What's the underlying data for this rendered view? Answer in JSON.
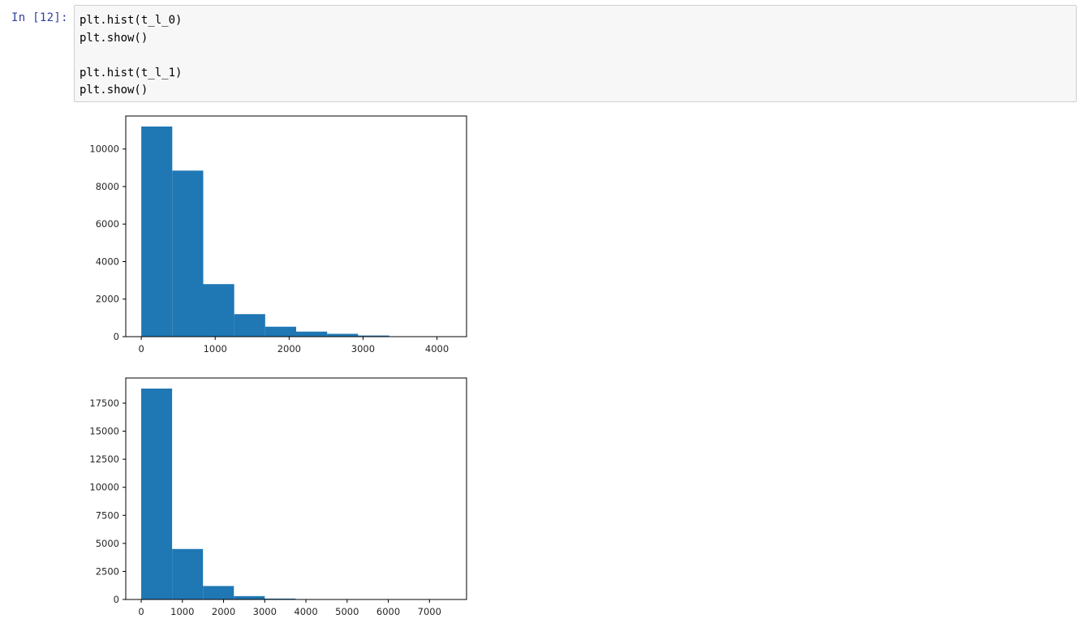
{
  "cell": {
    "prompt": "In [12]:",
    "code_lines": [
      "plt.hist(t_l_0)",
      "plt.show()",
      "",
      "plt.hist(t_l_1)",
      "plt.show()"
    ]
  },
  "colors": {
    "bar": "#1f77b4",
    "prompt": "#303f9f",
    "input_background": "#f7f7f7",
    "input_border": "#cfcfcf"
  },
  "chart_data": [
    {
      "type": "bar",
      "title": "",
      "xlabel": "",
      "ylabel": "",
      "bin_edges": [
        0,
        419,
        838,
        1257,
        1676,
        2095,
        2514,
        2933,
        3352,
        3771,
        4190
      ],
      "values": [
        11200,
        8850,
        2800,
        1200,
        530,
        270,
        150,
        60,
        15,
        5
      ],
      "xlim": [
        -210,
        4400
      ],
      "ylim": [
        0,
        11760
      ],
      "xticks": [
        0,
        1000,
        2000,
        3000,
        4000
      ],
      "xtick_labels": [
        "0",
        "1000",
        "2000",
        "3000",
        "4000"
      ],
      "yticks": [
        0,
        2000,
        4000,
        6000,
        8000,
        10000
      ],
      "ytick_labels": [
        "0",
        "2000",
        "4000",
        "6000",
        "8000",
        "10000"
      ],
      "grid": false
    },
    {
      "type": "bar",
      "title": "",
      "xlabel": "",
      "ylabel": "",
      "bin_edges": [
        0,
        750,
        1500,
        2250,
        3000,
        3750,
        4500,
        5250,
        6000,
        6750,
        7500
      ],
      "values": [
        18800,
        4500,
        1200,
        300,
        80,
        25,
        10,
        5,
        2,
        1
      ],
      "xlim": [
        -375,
        7900
      ],
      "ylim": [
        0,
        19740
      ],
      "xticks": [
        0,
        1000,
        2000,
        3000,
        4000,
        5000,
        6000,
        7000
      ],
      "xtick_labels": [
        "0",
        "1000",
        "2000",
        "3000",
        "4000",
        "5000",
        "6000",
        "7000"
      ],
      "yticks": [
        0,
        2500,
        5000,
        7500,
        10000,
        12500,
        15000,
        17500
      ],
      "ytick_labels": [
        "0",
        "2500",
        "5000",
        "7500",
        "10000",
        "12500",
        "15000",
        "17500"
      ],
      "grid": false
    }
  ]
}
